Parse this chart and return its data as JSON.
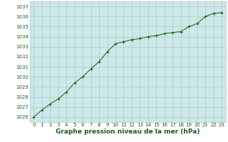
{
  "x": [
    0,
    1,
    2,
    3,
    4,
    5,
    6,
    7,
    8,
    9,
    10,
    11,
    12,
    13,
    14,
    15,
    16,
    17,
    18,
    19,
    20,
    21,
    22,
    23
  ],
  "y": [
    1026.0,
    1026.7,
    1027.3,
    1027.8,
    1028.5,
    1029.4,
    1030.0,
    1030.8,
    1031.5,
    1032.5,
    1033.3,
    1033.5,
    1033.7,
    1033.8,
    1034.0,
    1034.1,
    1034.3,
    1034.4,
    1034.5,
    1035.0,
    1035.3,
    1036.0,
    1036.3,
    1036.4
  ],
  "ylim": [
    1025.5,
    1037.5
  ],
  "xlim": [
    -0.5,
    23.5
  ],
  "yticks": [
    1026,
    1027,
    1028,
    1029,
    1030,
    1031,
    1032,
    1033,
    1034,
    1035,
    1036,
    1037
  ],
  "xticks": [
    0,
    1,
    2,
    3,
    4,
    5,
    6,
    7,
    8,
    9,
    10,
    11,
    12,
    13,
    14,
    15,
    16,
    17,
    18,
    19,
    20,
    21,
    22,
    23
  ],
  "line_color": "#1a5c1a",
  "marker": "+",
  "marker_size": 3,
  "bg_color": "#cce8e8",
  "grid_color": "#b0c8c8",
  "xlabel": "Graphe pression niveau de la mer (hPa)",
  "xlabel_color": "#1a5c1a",
  "tick_color": "#1a5c1a",
  "tick_fontsize": 5.0,
  "xlabel_fontsize": 6.5,
  "outer_bg": "#ffffff"
}
